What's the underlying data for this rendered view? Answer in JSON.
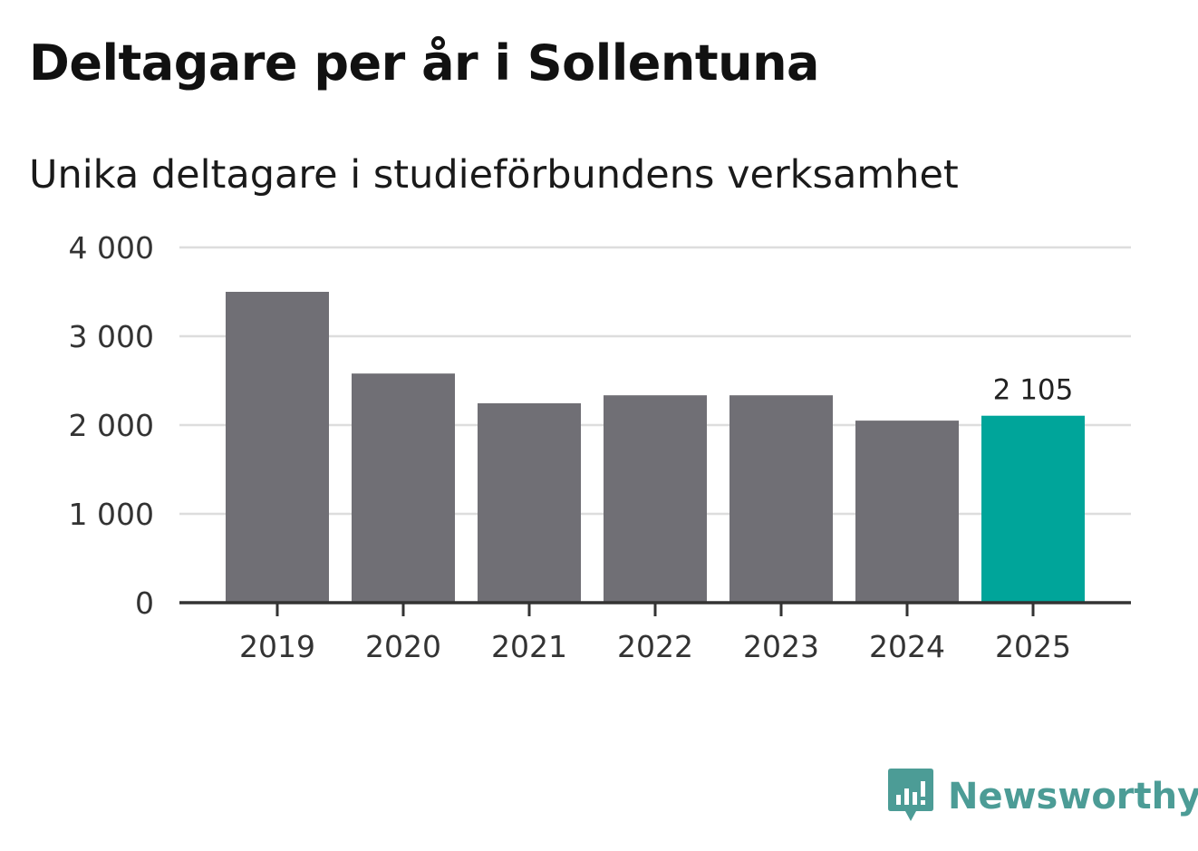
{
  "header": {
    "title": "Deltagare per år i Sollentuna",
    "subtitle": "Unika deltagare i studieförbundens verksamhet"
  },
  "brand": {
    "name": "Newsworthy",
    "icon": "newsworthy-logo-icon",
    "color": "#4c9c96"
  },
  "colors": {
    "bar": "#706f75",
    "highlight": "#00a59a",
    "grid": "#dddddd",
    "axis": "#333333"
  },
  "chart_data": {
    "type": "bar",
    "title": "Deltagare per år i Sollentuna",
    "subtitle": "Unika deltagare i studieförbundens verksamhet",
    "xlabel": "",
    "ylabel": "",
    "categories": [
      "2019",
      "2020",
      "2021",
      "2022",
      "2023",
      "2024",
      "2025"
    ],
    "values": [
      3500,
      2580,
      2245,
      2335,
      2335,
      2050,
      2105
    ],
    "ylim": [
      0,
      4000
    ],
    "yticks": [
      0,
      1000,
      2000,
      3000,
      4000
    ],
    "ytick_labels": [
      "0",
      "1 000",
      "2 000",
      "3 000",
      "4 000"
    ],
    "highlight_index": 6,
    "data_labels": [
      {
        "index": 6,
        "text": "2 105"
      }
    ],
    "grid": true,
    "legend": "none"
  }
}
